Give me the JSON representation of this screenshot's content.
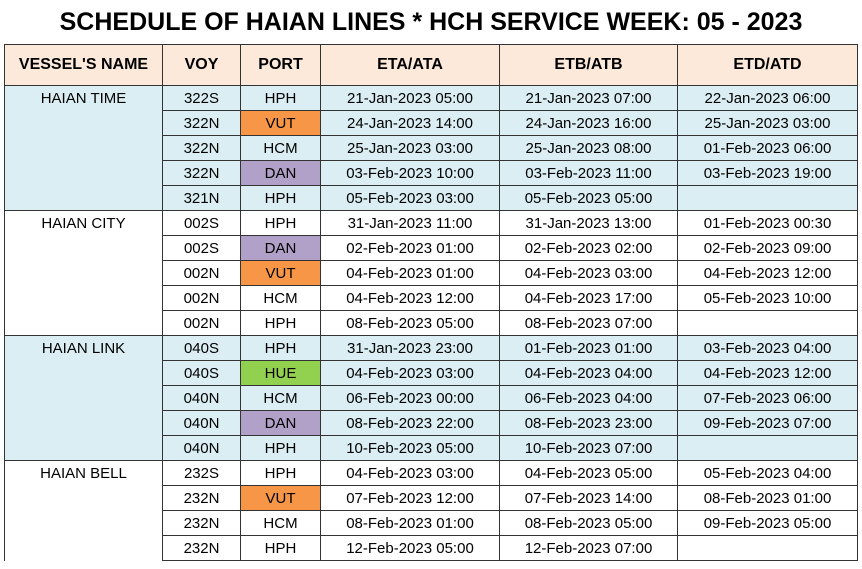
{
  "title": "SCHEDULE OF HAIAN LINES * HCH SERVICE WEEK: 05 - 2023",
  "port_colors": {
    "VUT": "#f79646",
    "DAN": "#b1a0c7",
    "HUE": "#92d050"
  },
  "table": {
    "headers": [
      "VESSEL'S NAME",
      "VOY",
      "PORT",
      "ETA/ATA",
      "ETB/ATB",
      "ETD/ATD"
    ],
    "rows": [
      [
        "HAIAN TIME",
        "322S",
        "HPH",
        "21-Jan-2023 05:00",
        "21-Jan-2023 07:00",
        "22-Jan-2023 06:00"
      ],
      [
        null,
        "322N",
        "VUT",
        "24-Jan-2023 14:00",
        "24-Jan-2023 16:00",
        "25-Jan-2023 03:00"
      ],
      [
        null,
        "322N",
        "HCM",
        "25-Jan-2023 03:00",
        "25-Jan-2023 08:00",
        "01-Feb-2023 06:00"
      ],
      [
        null,
        "322N",
        "DAN",
        "03-Feb-2023 10:00",
        "03-Feb-2023 11:00",
        "03-Feb-2023 19:00"
      ],
      [
        null,
        "321N",
        "HPH",
        "05-Feb-2023 03:00",
        "05-Feb-2023 05:00",
        null
      ],
      [
        "HAIAN CITY",
        "002S",
        "HPH",
        "31-Jan-2023 11:00",
        "31-Jan-2023 13:00",
        "01-Feb-2023 00:30"
      ],
      [
        null,
        "002S",
        "DAN",
        "02-Feb-2023 01:00",
        "02-Feb-2023 02:00",
        "02-Feb-2023 09:00"
      ],
      [
        null,
        "002N",
        "VUT",
        "04-Feb-2023 01:00",
        "04-Feb-2023 03:00",
        "04-Feb-2023 12:00"
      ],
      [
        null,
        "002N",
        "HCM",
        "04-Feb-2023 12:00",
        "04-Feb-2023 17:00",
        "05-Feb-2023 10:00"
      ],
      [
        null,
        "002N",
        "HPH",
        "08-Feb-2023 05:00",
        "08-Feb-2023 07:00",
        null
      ],
      [
        "HAIAN LINK",
        "040S",
        "HPH",
        "31-Jan-2023 23:00",
        "01-Feb-2023 01:00",
        "03-Feb-2023 04:00"
      ],
      [
        null,
        "040S",
        "HUE",
        "04-Feb-2023 03:00",
        "04-Feb-2023 04:00",
        "04-Feb-2023 12:00"
      ],
      [
        null,
        "040N",
        "HCM",
        "06-Feb-2023 00:00",
        "06-Feb-2023 04:00",
        "07-Feb-2023 06:00"
      ],
      [
        null,
        "040N",
        "DAN",
        "08-Feb-2023 22:00",
        "08-Feb-2023 23:00",
        "09-Feb-2023 07:00"
      ],
      [
        null,
        "040N",
        "HPH",
        "10-Feb-2023 05:00",
        "10-Feb-2023 07:00",
        null
      ],
      [
        "HAIAN BELL",
        "232S",
        "HPH",
        "04-Feb-2023 03:00",
        "04-Feb-2023 05:00",
        "05-Feb-2023 04:00"
      ],
      [
        null,
        "232N",
        "VUT",
        "07-Feb-2023 12:00",
        "07-Feb-2023 14:00",
        "08-Feb-2023 01:00"
      ],
      [
        null,
        "232N",
        "HCM",
        "08-Feb-2023 01:00",
        "08-Feb-2023 05:00",
        "09-Feb-2023 05:00"
      ],
      [
        null,
        "232N",
        "HPH",
        "12-Feb-2023 05:00",
        "12-Feb-2023 07:00",
        null
      ]
    ]
  }
}
